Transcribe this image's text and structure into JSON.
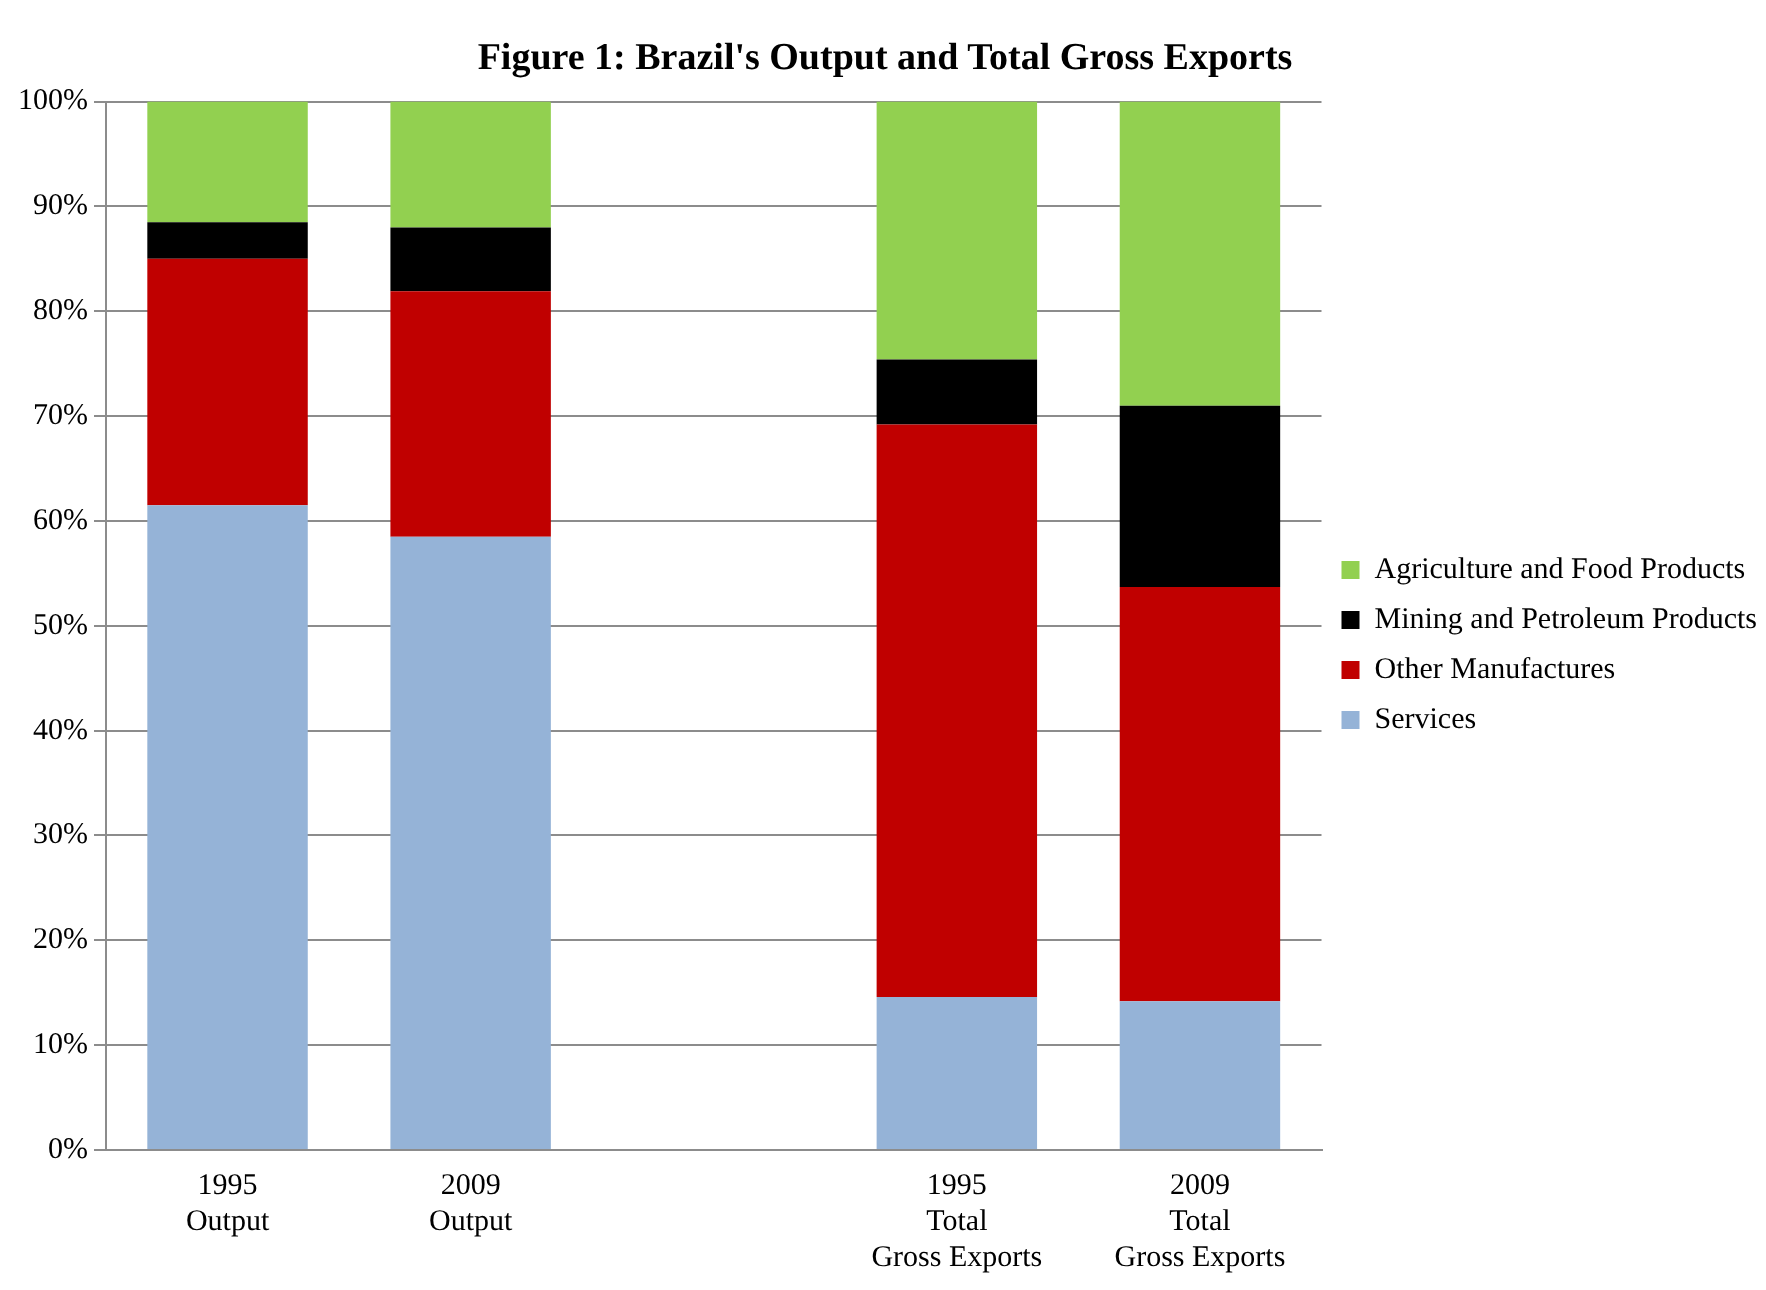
{
  "chart_data": {
    "type": "bar",
    "title": "Figure 1: Brazil's Output and Total Gross Exports",
    "categories": [
      "1995\nOutput",
      "2009\nOutput",
      null,
      "1995\nTotal\nGross Exports",
      "2009\nTotal\nGross Exports"
    ],
    "stacked": true,
    "series": [
      {
        "name": "Services",
        "color": "#95b3d7",
        "values": [
          61.5,
          58.5,
          null,
          14.6,
          14.2
        ]
      },
      {
        "name": "Other Manufactures",
        "color": "#c00000",
        "values": [
          23.5,
          23.4,
          null,
          54.6,
          39.5
        ]
      },
      {
        "name": "Mining and Petroleum Products",
        "color": "#000000",
        "values": [
          3.5,
          6.1,
          null,
          6.2,
          17.3
        ]
      },
      {
        "name": "Agriculture and Food Products",
        "color": "#92d050",
        "values": [
          11.5,
          12,
          null,
          24.6,
          29
        ]
      }
    ],
    "ylim": [
      0,
      100
    ],
    "yticks": [
      {
        "value": 0,
        "label": "0%"
      },
      {
        "value": 10,
        "label": "10%"
      },
      {
        "value": 20,
        "label": "20%"
      },
      {
        "value": 30,
        "label": "30%"
      },
      {
        "value": 40,
        "label": "40%"
      },
      {
        "value": 50,
        "label": "50%"
      },
      {
        "value": 60,
        "label": "60%"
      },
      {
        "value": 70,
        "label": "70%"
      },
      {
        "value": 80,
        "label": "80%"
      },
      {
        "value": 90,
        "label": "90%"
      },
      {
        "value": 100,
        "label": "100%"
      }
    ],
    "grid": "y",
    "legend": "right"
  }
}
